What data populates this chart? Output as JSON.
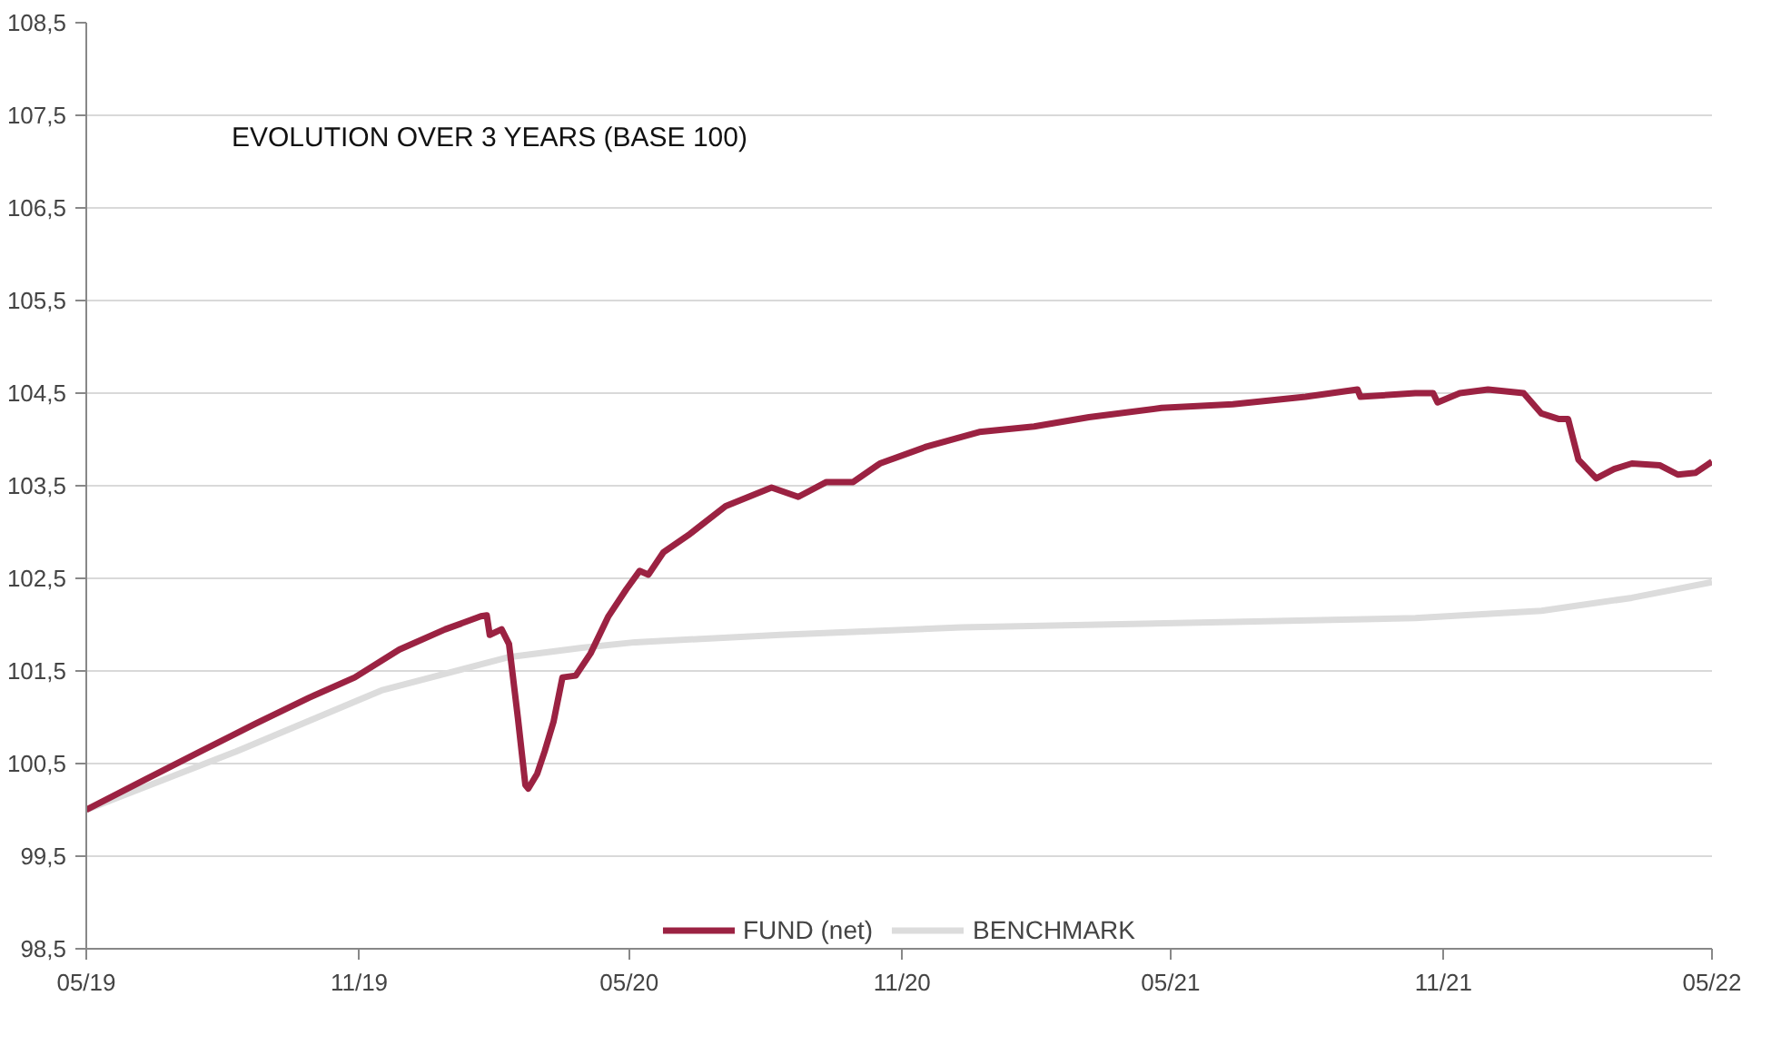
{
  "chart_data": {
    "type": "line",
    "title": "EVOLUTION OVER 3 YEARS (BASE 100)",
    "series": [
      {
        "name": "FUND (net)",
        "color": "#9b2242",
        "x": [
          "2019-05-01",
          "2019-06-10",
          "2019-07-17",
          "2019-08-23",
          "2019-09-28",
          "2019-10-29",
          "2019-11-28",
          "2019-12-29",
          "2020-01-22",
          "2020-01-26",
          "2020-01-28",
          "2020-02-05",
          "2020-02-10",
          "2020-02-16",
          "2020-02-21",
          "2020-02-23",
          "2020-02-29",
          "2020-03-05",
          "2020-03-11",
          "2020-03-17",
          "2020-03-26",
          "2020-04-05",
          "2020-04-17",
          "2020-04-29",
          "2020-05-08",
          "2020-05-14",
          "2020-05-24",
          "2020-06-11",
          "2020-07-05",
          "2020-08-05",
          "2020-08-23",
          "2020-09-11",
          "2020-09-29",
          "2020-10-17",
          "2020-11-17",
          "2020-12-23",
          "2021-01-29",
          "2021-03-07",
          "2021-04-25",
          "2021-06-12",
          "2021-07-31",
          "2021-09-04",
          "2021-09-06",
          "2021-10-13",
          "2021-10-25",
          "2021-10-28",
          "2021-11-12",
          "2021-12-01",
          "2021-12-25",
          "2022-01-06",
          "2022-01-18",
          "2022-01-24",
          "2022-01-31",
          "2022-02-12",
          "2022-02-24",
          "2022-03-08",
          "2022-03-27",
          "2022-04-08",
          "2022-04-20",
          "2022-05-01"
        ],
        "values": [
          100.0,
          100.33,
          100.63,
          100.93,
          101.21,
          101.43,
          101.73,
          101.95,
          102.09,
          102.1,
          101.89,
          101.95,
          101.79,
          100.99,
          100.27,
          100.23,
          100.39,
          100.63,
          100.95,
          101.43,
          101.45,
          101.69,
          102.09,
          102.38,
          102.58,
          102.54,
          102.78,
          102.98,
          103.28,
          103.48,
          103.38,
          103.54,
          103.54,
          103.74,
          103.92,
          104.08,
          104.14,
          104.24,
          104.34,
          104.38,
          104.46,
          104.54,
          104.46,
          104.5,
          104.5,
          104.4,
          104.5,
          104.54,
          104.5,
          104.28,
          104.22,
          104.22,
          103.78,
          103.58,
          103.68,
          103.74,
          103.72,
          103.62,
          103.64,
          103.76
        ]
      },
      {
        "name": "BENCHMARK",
        "color": "#dcdcdc",
        "x": [
          "2019-05-01",
          "2019-08-10",
          "2019-11-16",
          "2020-02-10",
          "2020-03-30",
          "2020-05-05",
          "2020-08-11",
          "2020-12-11",
          "2021-06-12",
          "2021-10-13",
          "2022-01-06",
          "2022-03-08",
          "2022-05-01"
        ],
        "values": [
          100.0,
          100.63,
          101.29,
          101.65,
          101.75,
          101.81,
          101.89,
          101.97,
          102.03,
          102.07,
          102.15,
          102.29,
          102.46
        ]
      }
    ],
    "xlim": [
      "2019-05-01",
      "2022-05-01"
    ],
    "xticks": [
      {
        "value": "2019-05-01",
        "label": "05/19"
      },
      {
        "value": "2019-11-01",
        "label": "11/19"
      },
      {
        "value": "2020-05-01",
        "label": "05/20"
      },
      {
        "value": "2020-11-01",
        "label": "11/20"
      },
      {
        "value": "2021-05-01",
        "label": "05/21"
      },
      {
        "value": "2021-11-01",
        "label": "11/21"
      },
      {
        "value": "2022-05-01",
        "label": "05/22"
      }
    ],
    "ylim": [
      98.5,
      108.5
    ],
    "yticks": [
      {
        "value": 98.5,
        "label": "98,5"
      },
      {
        "value": 99.5,
        "label": "99,5"
      },
      {
        "value": 100.5,
        "label": "100,5"
      },
      {
        "value": 101.5,
        "label": "101,5"
      },
      {
        "value": 102.5,
        "label": "102,5"
      },
      {
        "value": 103.5,
        "label": "103,5"
      },
      {
        "value": 104.5,
        "label": "104,5"
      },
      {
        "value": 105.5,
        "label": "105,5"
      },
      {
        "value": 106.5,
        "label": "106,5"
      },
      {
        "value": 107.5,
        "label": "107,5"
      },
      {
        "value": 108.5,
        "label": "108,5"
      }
    ],
    "grid": "y",
    "legend": "bottom",
    "marker": "none",
    "line_style": "solid"
  }
}
